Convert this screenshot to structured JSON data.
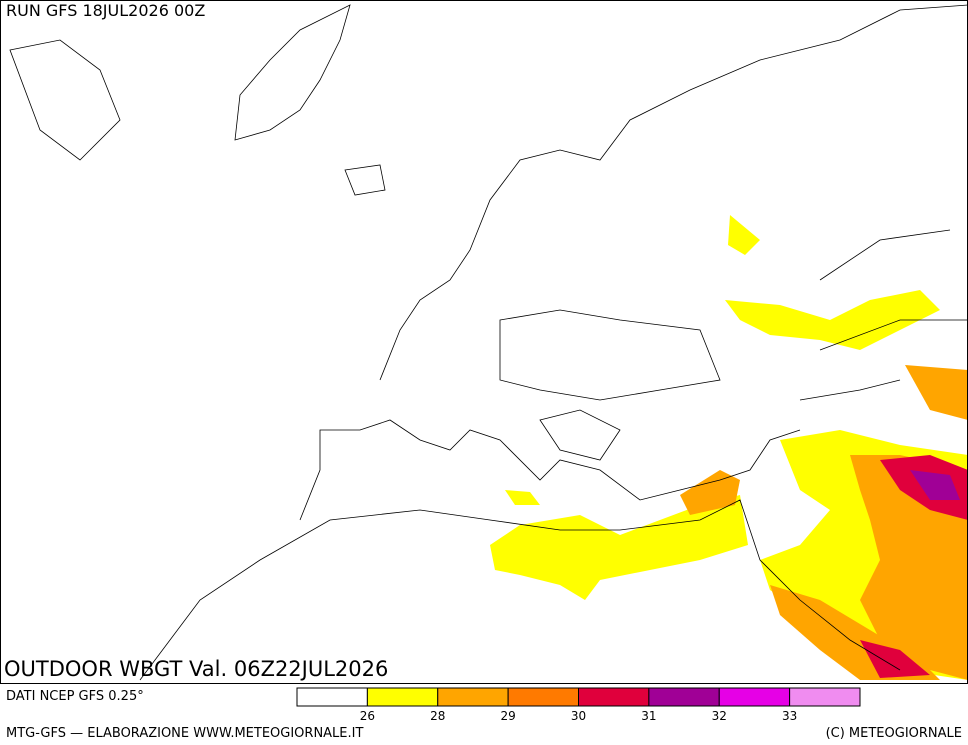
{
  "header": {
    "run": "RUN GFS 18JUL2026 00Z"
  },
  "map": {
    "title": "OUTDOOR WBGT Val. 06Z22JUL2026"
  },
  "footer": {
    "source": "DATI NCEP GFS 0.25°",
    "credit": "MTG-GFS — ELABORAZIONE WWW.METEOGIORNALE.IT",
    "copyright": "(C) METEOGIORNALE"
  },
  "legend": {
    "colors": [
      "#ffffff",
      "#ffff00",
      "#ffa500",
      "#ff7a00",
      "#e0003c",
      "#a00096",
      "#e600e6",
      "#f08cf0"
    ],
    "labels": [
      26,
      28,
      29,
      30,
      31,
      32,
      33
    ]
  }
}
